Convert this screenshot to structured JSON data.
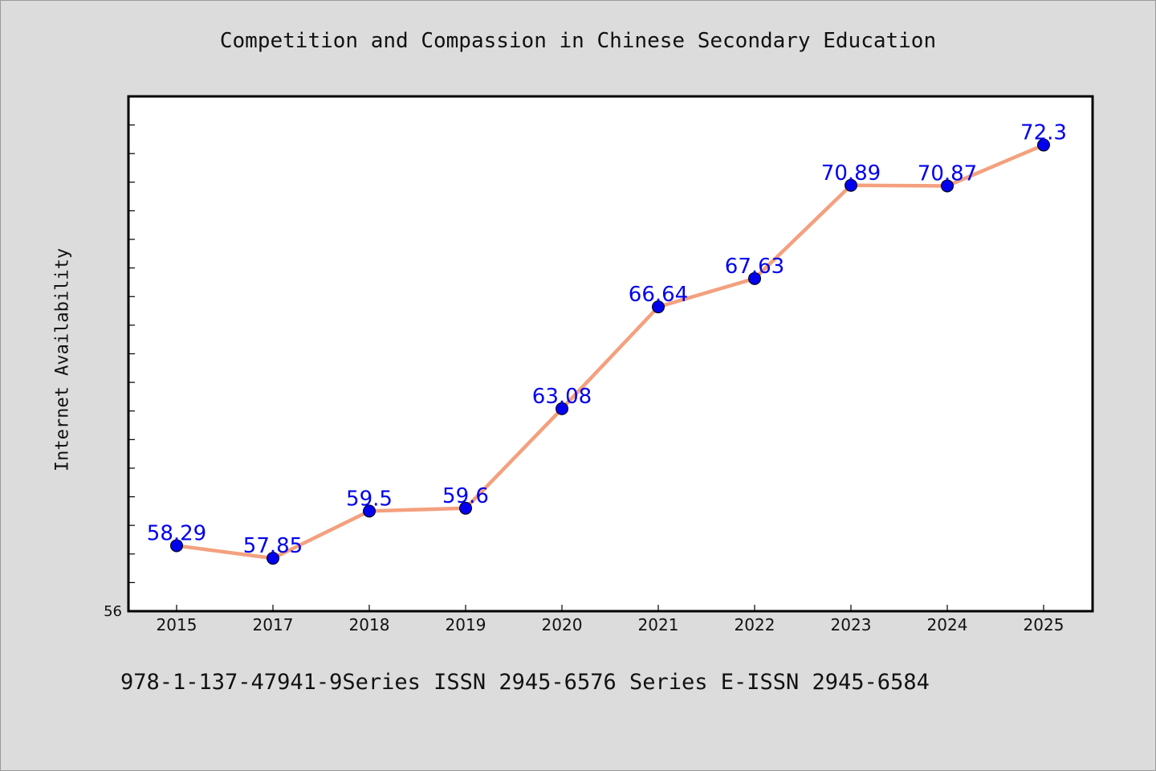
{
  "page": {
    "background": "#dcdcdc",
    "footer": "978-1-137-47941-9Series ISSN 2945-6576 Series E-ISSN 2945-6584"
  },
  "chart_data": {
    "type": "line",
    "title": "Competition and Compassion in Chinese Secondary Education",
    "xlabel": "",
    "ylabel": "Internet Availability",
    "categories": [
      "2015",
      "2017",
      "2018",
      "2019",
      "2020",
      "2021",
      "2022",
      "2023",
      "2024",
      "2025"
    ],
    "series": [
      {
        "values": [
          58.29,
          57.85,
          59.5,
          59.6,
          63.08,
          66.64,
          67.63,
          70.89,
          70.87,
          72.3
        ],
        "data_labels": [
          "58.29",
          "57.85",
          "59.5",
          "59.6",
          "63.08",
          "66.64",
          "67.63",
          "70.89",
          "70.87",
          "72.3"
        ],
        "line_color": "#f4a07e",
        "marker_color": "#0000ee",
        "label_color": "#0000ee"
      }
    ],
    "ylim": [
      56,
      74
    ],
    "y_tick_labels": [
      "56"
    ],
    "y_minor_tick_step": 1,
    "grid": false,
    "legend": "none"
  }
}
